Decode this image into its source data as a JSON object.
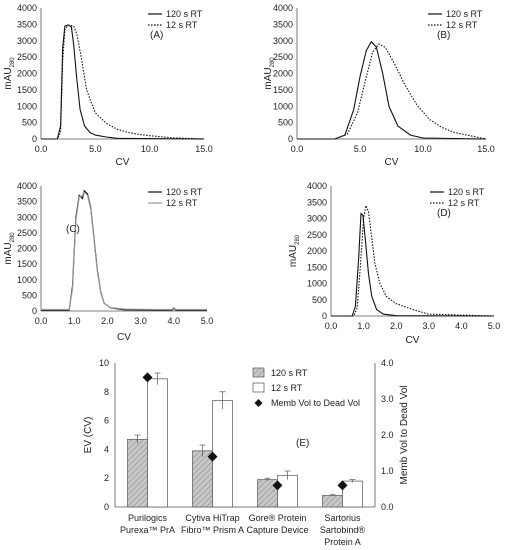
{
  "chart_data": [
    {
      "type": "line",
      "panel_label": "(A)",
      "xlabel": "CV",
      "ylabel": "mAU",
      "ylabel_sub": "280",
      "xlim": [
        0,
        15
      ],
      "ylim": [
        0,
        4000
      ],
      "xticks": [
        "0.0",
        "5.0",
        "10.0",
        "15.0"
      ],
      "yticks": [
        "0",
        "500",
        "1000",
        "1500",
        "2000",
        "2500",
        "3000",
        "3500",
        "4000"
      ],
      "legend_position": "top-right",
      "series": [
        {
          "name": "120 s RT",
          "style": "solid",
          "color": "#111111",
          "x": [
            0,
            1.5,
            1.8,
            2.0,
            2.2,
            2.5,
            2.8,
            3.0,
            3.3,
            3.6,
            4.0,
            4.5,
            5.0,
            6.0,
            7.0,
            15.0
          ],
          "y": [
            0,
            0,
            400,
            2800,
            3450,
            3480,
            3420,
            2900,
            1800,
            900,
            400,
            200,
            120,
            60,
            20,
            0
          ]
        },
        {
          "name": "12 s RT",
          "style": "dotted",
          "color": "#111111",
          "x": [
            0,
            1.5,
            1.8,
            2.0,
            2.2,
            2.5,
            3.0,
            3.3,
            3.7,
            4.2,
            5.0,
            6.0,
            7.0,
            8.0,
            9.0,
            10.0,
            11.0,
            12.0,
            15.0
          ],
          "y": [
            0,
            0,
            200,
            2400,
            3350,
            3480,
            3450,
            3200,
            2500,
            1500,
            800,
            480,
            300,
            200,
            140,
            100,
            70,
            40,
            0
          ]
        }
      ]
    },
    {
      "type": "line",
      "panel_label": "(B)",
      "xlabel": "CV",
      "ylabel": "mAU",
      "ylabel_sub": "280",
      "xlim": [
        0,
        15
      ],
      "ylim": [
        0,
        4000
      ],
      "xticks": [
        "0.0",
        "5.0",
        "10.0",
        "15.0"
      ],
      "yticks": [
        "0",
        "500",
        "1000",
        "1500",
        "2000",
        "2500",
        "3000",
        "3500",
        "4000"
      ],
      "legend_position": "top-right",
      "series": [
        {
          "name": "120 s RT",
          "style": "solid",
          "color": "#111111",
          "x": [
            0,
            3.0,
            3.8,
            4.5,
            5.0,
            5.5,
            5.9,
            6.3,
            6.8,
            7.3,
            8.0,
            9.0,
            10.0,
            15.0
          ],
          "y": [
            0,
            0,
            120,
            900,
            1900,
            2700,
            2970,
            2800,
            2000,
            1000,
            400,
            120,
            30,
            0
          ]
        },
        {
          "name": "12 s RT",
          "style": "dotted",
          "color": "#111111",
          "x": [
            0,
            3.0,
            4.0,
            4.8,
            5.5,
            6.0,
            6.5,
            7.0,
            7.8,
            8.5,
            9.5,
            10.5,
            11.5,
            12.5,
            13.5,
            15.0
          ],
          "y": [
            0,
            0,
            150,
            800,
            1900,
            2650,
            2900,
            2800,
            2250,
            1700,
            1050,
            600,
            350,
            200,
            120,
            0
          ]
        }
      ]
    },
    {
      "type": "line",
      "panel_label": "(C)",
      "xlabel": "CV",
      "ylabel": "mAU",
      "ylabel_sub": "280",
      "xlim": [
        0,
        5
      ],
      "ylim": [
        0,
        4000
      ],
      "xticks": [
        "0.0",
        "1.0",
        "2.0",
        "3.0",
        "4.0",
        "5.0"
      ],
      "yticks": [
        "0",
        "500",
        "1000",
        "1500",
        "2000",
        "2500",
        "3000",
        "3500",
        "4000"
      ],
      "legend_position": "top-right",
      "series": [
        {
          "name": "120 s RT",
          "style": "solid",
          "color": "#111111",
          "x": [
            0,
            0.85,
            0.95,
            1.05,
            1.15,
            1.25,
            1.3,
            1.4,
            1.5,
            1.6,
            1.7,
            1.8,
            1.9,
            2.1,
            2.5,
            3.5,
            3.95,
            4.0,
            4.05,
            5.0
          ],
          "y": [
            30,
            30,
            800,
            3000,
            3700,
            3600,
            3850,
            3750,
            3300,
            2300,
            1300,
            600,
            250,
            100,
            40,
            30,
            30,
            90,
            30,
            30
          ]
        },
        {
          "name": "12 s RT",
          "style": "solid",
          "color": "#999999",
          "x": [
            0,
            0.85,
            0.95,
            1.05,
            1.15,
            1.25,
            1.3,
            1.4,
            1.5,
            1.6,
            1.7,
            1.8,
            1.9,
            2.1,
            2.5,
            3.5,
            3.95,
            4.0,
            4.05,
            5.0
          ],
          "y": [
            50,
            50,
            700,
            2900,
            3650,
            3700,
            3800,
            3700,
            3250,
            2250,
            1250,
            580,
            240,
            110,
            60,
            50,
            50,
            110,
            50,
            50
          ]
        }
      ]
    },
    {
      "type": "line",
      "panel_label": "(D)",
      "xlabel": "CV",
      "ylabel": "mAU",
      "ylabel_sub": "280",
      "xlim": [
        0,
        5
      ],
      "ylim": [
        0,
        4000
      ],
      "xticks": [
        "0.0",
        "1.0",
        "2.0",
        "3.0",
        "4.0",
        "5.0"
      ],
      "yticks": [
        "0",
        "500",
        "1000",
        "1500",
        "2000",
        "2500",
        "3000",
        "3500",
        "4000"
      ],
      "legend_position": "top-right",
      "series": [
        {
          "name": "120 s RT",
          "style": "solid",
          "color": "#111111",
          "x": [
            0,
            0.65,
            0.75,
            0.85,
            0.92,
            0.98,
            1.05,
            1.15,
            1.25,
            1.4,
            1.6,
            2.0,
            5.0
          ],
          "y": [
            0,
            0,
            300,
            1800,
            3150,
            3100,
            2400,
            1300,
            600,
            200,
            60,
            10,
            0
          ]
        },
        {
          "name": "12 s RT",
          "style": "dotted",
          "color": "#111111",
          "x": [
            0,
            0.7,
            0.8,
            0.9,
            1.0,
            1.07,
            1.15,
            1.25,
            1.35,
            1.5,
            1.7,
            2.0,
            2.5,
            3.0,
            5.0
          ],
          "y": [
            0,
            0,
            250,
            1500,
            3000,
            3400,
            3200,
            2400,
            1600,
            1000,
            600,
            380,
            200,
            60,
            0
          ]
        }
      ]
    },
    {
      "type": "bar",
      "panel_label": "(E)",
      "ylabel": "EV (CV)",
      "y2label": "Memb Vol to Dead Vol",
      "ylim": [
        0,
        10
      ],
      "y2lim": [
        0,
        4
      ],
      "yticks": [
        "0",
        "2",
        "4",
        "6",
        "8",
        "10"
      ],
      "y2ticks": [
        "0.0",
        "1.0",
        "2.0",
        "3.0",
        "4.0"
      ],
      "legend_position": "top-right",
      "categories": [
        [
          "Purilogics",
          "Purexa™ PrA"
        ],
        [
          "Cytiva HiTrap",
          "Fibro™ Prism A"
        ],
        [
          "Gore® Protein",
          "Capture Device"
        ],
        [
          "Sartorius",
          "Sartobind®",
          "Protein A"
        ]
      ],
      "series": [
        {
          "name": "120 s RT",
          "fill": "#c8c8c8",
          "pattern": "hatched",
          "values": [
            4.7,
            3.9,
            1.9,
            0.8
          ],
          "errors": [
            0.3,
            0.4,
            0.1,
            0.05
          ]
        },
        {
          "name": "12 s RT",
          "fill": "#ffffff",
          "values": [
            8.9,
            7.4,
            2.2,
            1.8
          ],
          "errors": [
            0.4,
            0.6,
            0.3,
            0.1
          ]
        },
        {
          "name": "Memb Vol to Dead Vol",
          "marker": "diamond",
          "axis": "y2",
          "values": [
            3.6,
            1.4,
            0.6,
            0.6
          ]
        }
      ]
    }
  ]
}
